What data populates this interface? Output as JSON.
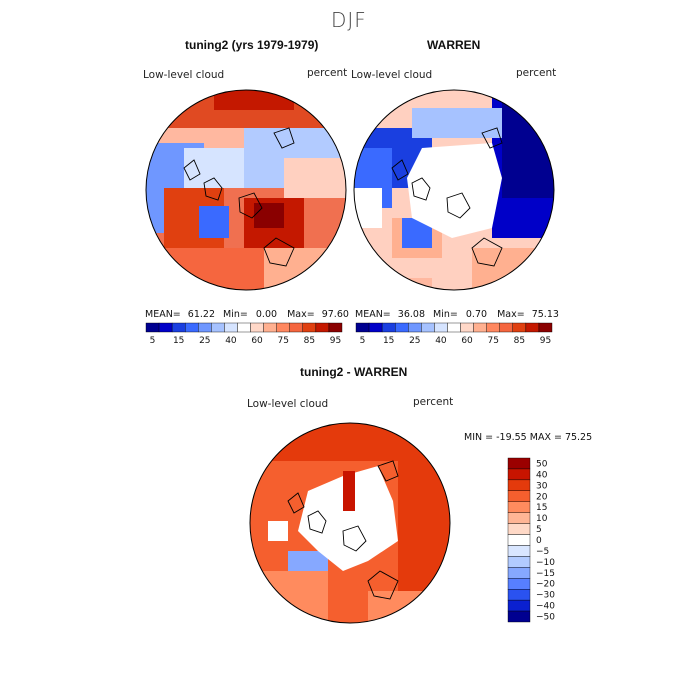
{
  "season": "DJF",
  "panels": [
    {
      "title": "tuning2 (yrs 1979-1979)",
      "variable": "Low-level cloud",
      "units": "percent",
      "stats": {
        "mean_label": "MEAN=",
        "mean": "61.22",
        "min_label": "Min=",
        "min": "0.00",
        "max_label": "Max=",
        "max": "97.60"
      }
    },
    {
      "title": "WARREN",
      "variable": "Low-level cloud",
      "units": "percent",
      "stats": {
        "mean_label": "MEAN=",
        "mean": "36.08",
        "min_label": "Min=",
        "min": "0.70",
        "max_label": "Max=",
        "max": "75.13"
      }
    }
  ],
  "colorbar_abs": {
    "colors": [
      "#000090",
      "#0000c8",
      "#1a3fe0",
      "#3a6aff",
      "#6f97ff",
      "#a6c2ff",
      "#d6e4ff",
      "#ffffff",
      "#ffd8c8",
      "#ffb090",
      "#ff8860",
      "#f5663f",
      "#e04010",
      "#c41800",
      "#8a0000"
    ],
    "ticks": [
      "5",
      "15",
      "25",
      "40",
      "60",
      "75",
      "85",
      "95"
    ]
  },
  "diff_panel": {
    "title": "tuning2 - WARREN",
    "variable": "Low-level cloud",
    "units": "percent",
    "range_text": "MIN = -19.55 MAX =  75.25"
  },
  "colorbar_diff": {
    "colors_top_to_bottom": [
      "#9b0000",
      "#c81400",
      "#e43a0c",
      "#f55f2e",
      "#ff8b5e",
      "#ffb595",
      "#ffd9c7",
      "#ffffff",
      "#d9e6ff",
      "#b2cbff",
      "#86a8ff",
      "#577fff",
      "#2a52f0",
      "#0a20d0",
      "#000090"
    ],
    "ticks_top_to_bottom": [
      "50",
      "40",
      "30",
      "20",
      "15",
      "10",
      "5",
      "0",
      "−5",
      "−10",
      "−15",
      "−20",
      "−30",
      "−40",
      "−50"
    ]
  }
}
